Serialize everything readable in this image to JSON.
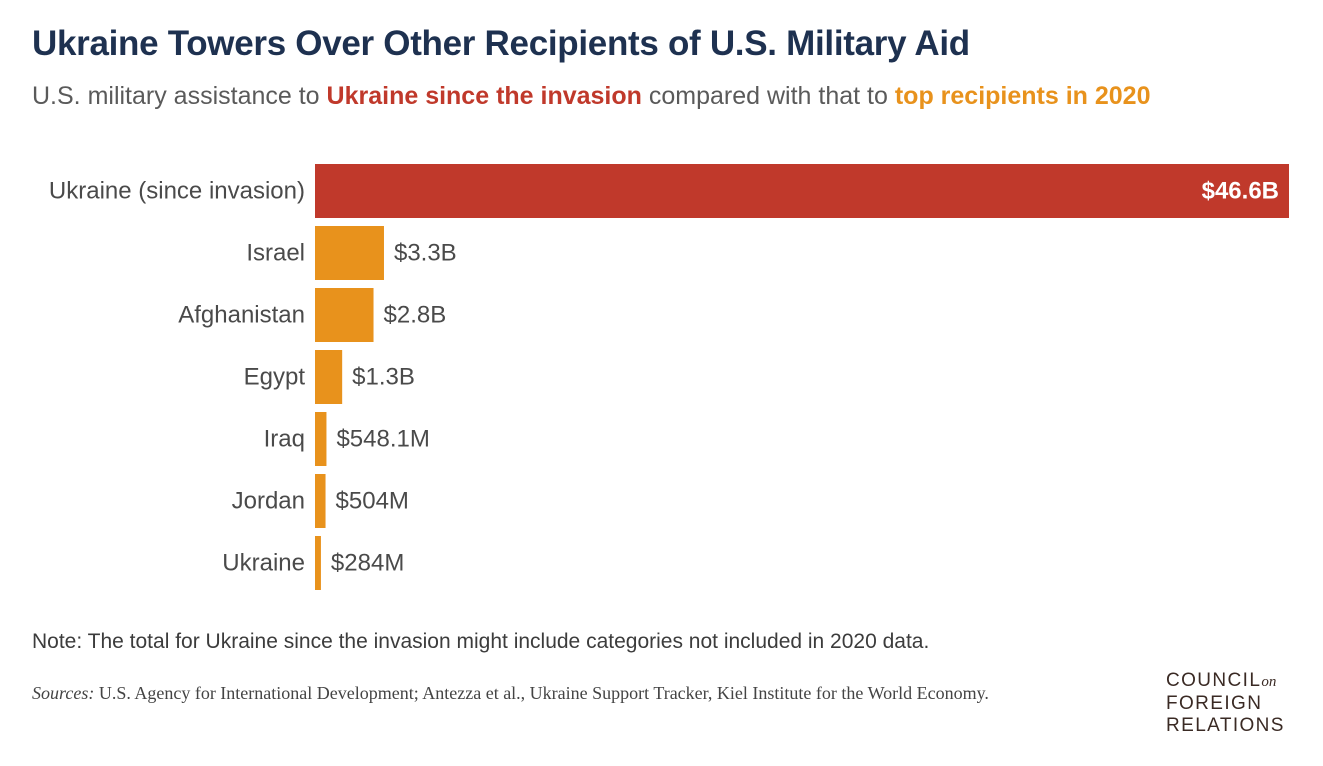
{
  "title": "Ukraine Towers Over Other Recipients of U.S. Military Aid",
  "subtitle": {
    "part1": "U.S. military assistance to ",
    "highlight1": "Ukraine since the invasion",
    "part2": " compared with that to ",
    "highlight2": "top recipients in 2020"
  },
  "colors": {
    "title": "#1e3150",
    "ukraine_invasion": "#c0392b",
    "top_2020": "#e8921c"
  },
  "chart_data": {
    "type": "bar",
    "orientation": "horizontal",
    "categories": [
      "Ukraine (since invasion)",
      "Israel",
      "Afghanistan",
      "Egypt",
      "Iraq",
      "Jordan",
      "Ukraine"
    ],
    "values": [
      46.6,
      3.3,
      2.8,
      1.3,
      0.5481,
      0.504,
      0.284
    ],
    "value_labels": [
      "$46.6B",
      "$3.3B",
      "$2.8B",
      "$1.3B",
      "$548.1M",
      "$504M",
      "$284M"
    ],
    "unit": "billions USD",
    "groups": [
      "Ukraine since the invasion",
      "top recipients in 2020",
      "top recipients in 2020",
      "top recipients in 2020",
      "top recipients in 2020",
      "top recipients in 2020",
      "top recipients in 2020"
    ],
    "bar_colors": [
      "#c0392b",
      "#e8921c",
      "#e8921c",
      "#e8921c",
      "#e8921c",
      "#e8921c",
      "#e8921c"
    ],
    "xlim": [
      0,
      46.6
    ],
    "grid": false
  },
  "note": "Note: The total for Ukraine since the invasion might include categories not included in 2020 data.",
  "sources": {
    "label": "Sources:",
    "text": " U.S. Agency for International Development; Antezza et al., Ukraine Support Tracker, Kiel Institute for the World Economy."
  },
  "logo": {
    "line1": "COUNCIL",
    "on": "on",
    "line2": "FOREIGN",
    "line3": "RELATIONS"
  }
}
